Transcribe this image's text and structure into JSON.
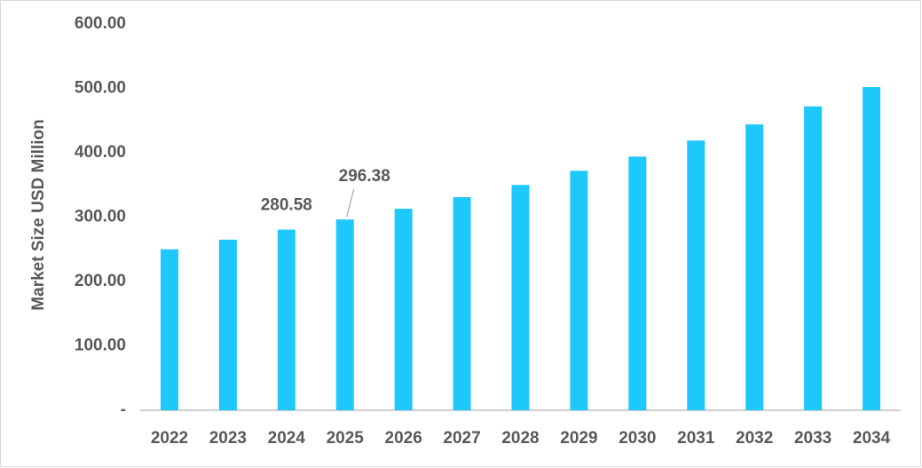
{
  "chart_data": {
    "type": "bar",
    "y_label": "Market Size USD Million",
    "categories": [
      "2022",
      "2023",
      "2024",
      "2025",
      "2026",
      "2027",
      "2028",
      "2029",
      "2030",
      "2031",
      "2032",
      "2033",
      "2034"
    ],
    "values": [
      250,
      265,
      280.58,
      296.38,
      313,
      331,
      350,
      372,
      394,
      419,
      444,
      472,
      502
    ],
    "value_labels": [
      null,
      null,
      "280.58",
      "296.38",
      null,
      null,
      null,
      null,
      null,
      null,
      null,
      null,
      null
    ],
    "color": "#1ec8fa",
    "ylim": [
      0,
      600
    ],
    "yticks": [
      {
        "value": 0,
        "label": "-"
      },
      {
        "value": 100,
        "label": "100.00"
      },
      {
        "value": 200,
        "label": "200.00"
      },
      {
        "value": 300,
        "label": "300.00"
      },
      {
        "value": 400,
        "label": "400.00"
      },
      {
        "value": 500,
        "label": "500.00"
      },
      {
        "value": 600,
        "label": "600.00"
      }
    ],
    "grid": false
  }
}
